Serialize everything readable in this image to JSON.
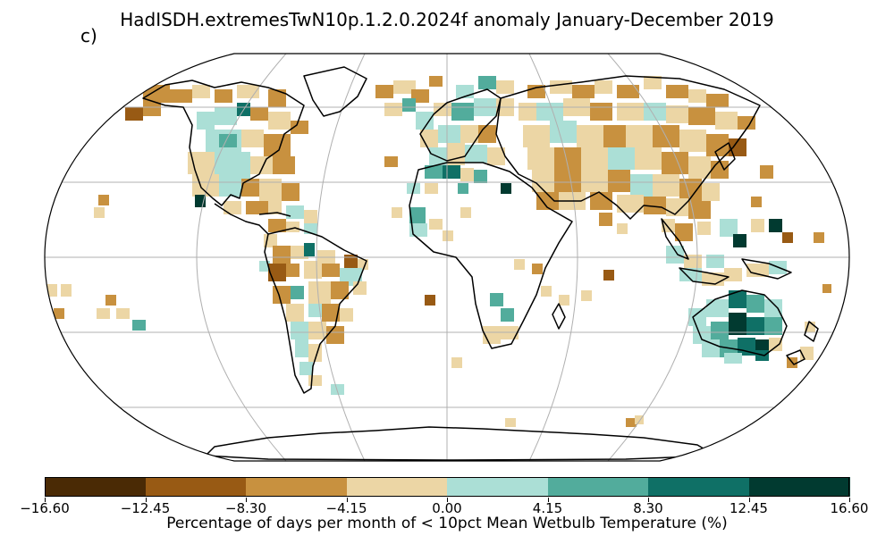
{
  "title": "HadISDH.extremesTwN10p.1.2.0.2024f anomaly January-December 2019",
  "panel_label": "c)",
  "colorbar": {
    "label": "Percentage of days per month of < 10pct Mean Wetbulb Temperature (%)",
    "ticks": [
      "−16.60",
      "−12.45",
      "−8.30",
      "−4.15",
      "0.00",
      "4.15",
      "8.30",
      "12.45",
      "16.60"
    ],
    "colors": [
      "#4a2a05",
      "#985a14",
      "#c8913f",
      "#ecd6a5",
      "#abdfd6",
      "#52ac9c",
      "#0f7066",
      "#013a30"
    ]
  },
  "colors": {
    "coastline": "#000000",
    "graticule": "#b0b0b0",
    "map_border": "#000000"
  }
}
